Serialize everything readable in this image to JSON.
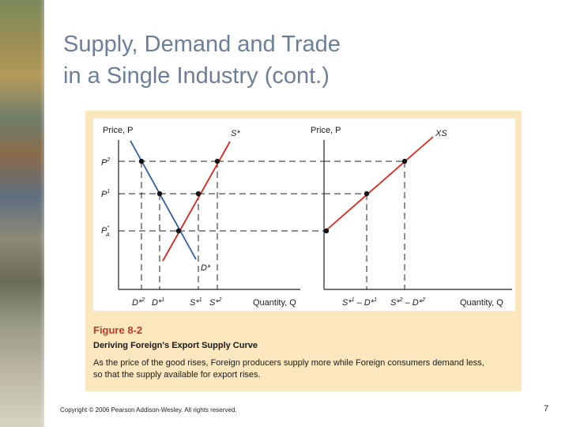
{
  "slide": {
    "title_line1": "Supply, Demand and Trade",
    "title_line2": "in a Single Industry (cont.)",
    "copyright": "Copyright © 2006 Pearson Addison-Wesley. All rights reserved.",
    "page_number": "7"
  },
  "figure": {
    "number": "Figure 8-2",
    "title": "Deriving Foreign's Export Supply Curve",
    "caption_line1": "As the price of the good rises, Foreign producers supply more while Foreign consumers demand less,",
    "caption_line2": "so that the supply available for export rises."
  },
  "left_panel": {
    "y_axis_label": "Price, P",
    "x_axis_label": "Quantity, Q",
    "supply_label": "S*",
    "demand_label": "D*",
    "price_labels": [
      "P",
      "P",
      "P"
    ],
    "price_superscripts": [
      "2",
      "1",
      "*"
    ],
    "price_subscripts": [
      "",
      "",
      "A"
    ],
    "x_tick_labels": [
      {
        "base": "D*",
        "sup": "2"
      },
      {
        "base": "D*",
        "sup": "1"
      },
      {
        "base": "S*",
        "sup": "1"
      },
      {
        "base": "S*",
        "sup": "2"
      }
    ]
  },
  "right_panel": {
    "y_axis_label": "Price, P",
    "x_axis_label": "Quantity, Q",
    "curve_label": "XS",
    "x_tick_labels": [
      {
        "base1": "S*",
        "sup1": "1",
        "sep": " – ",
        "base2": "D*",
        "sup2": "1"
      },
      {
        "base1": "S*",
        "sup1": "2",
        "sep": " – ",
        "base2": "D*",
        "sup2": "2"
      }
    ]
  },
  "colors": {
    "title": "#6b7f99",
    "supply_curve": "#e0241b",
    "demand_curve": "#2f5aa8",
    "export_supply_curve": "#e0241b",
    "figure_background": "#fbe7bd",
    "figure_number": "#c0392b"
  }
}
